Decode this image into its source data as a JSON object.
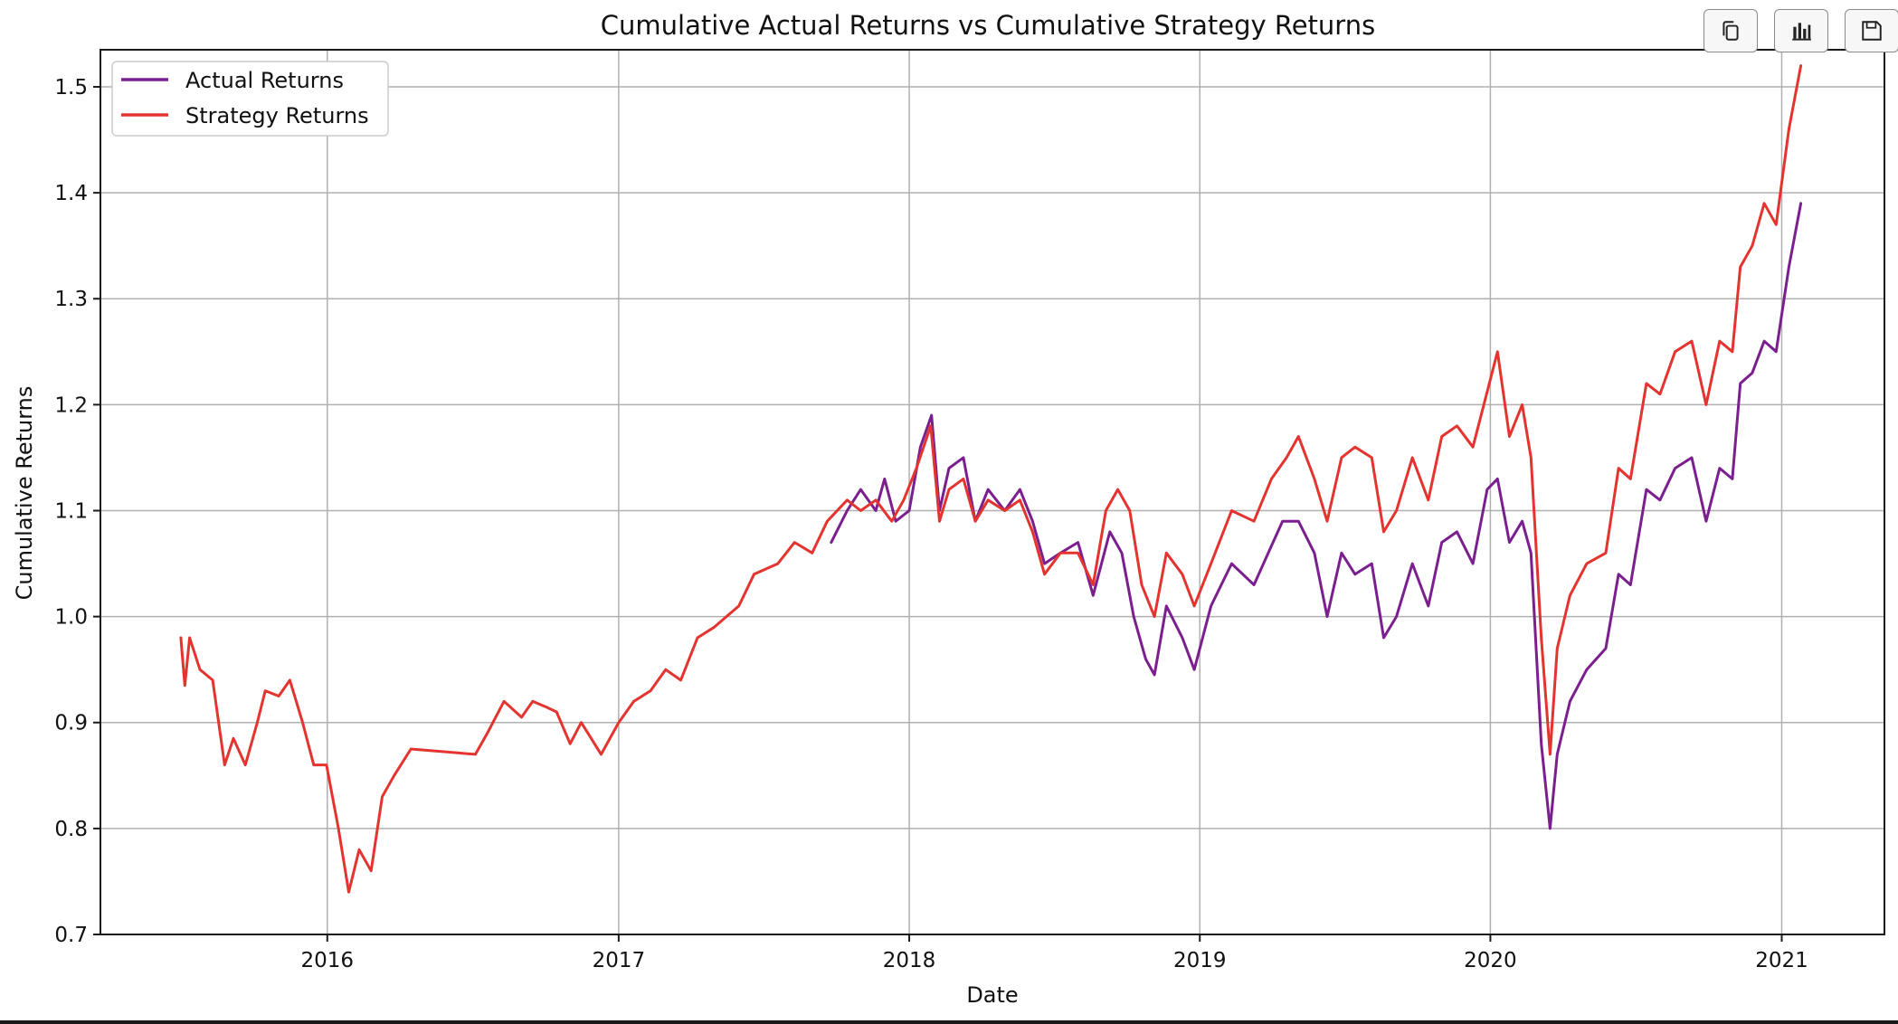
{
  "toolbar": {
    "buttons": [
      {
        "icon": "copy-icon"
      },
      {
        "icon": "bar-chart-icon"
      },
      {
        "icon": "save-icon"
      }
    ]
  },
  "chart_data": {
    "type": "line",
    "title": "Cumulative Actual Returns vs Cumulative Strategy Returns",
    "xlabel": "Date",
    "ylabel": "Cumulative Returns",
    "xlim": [
      "2015-03-22",
      "2021-05-10"
    ],
    "ylim": [
      0.7,
      1.535
    ],
    "xticks": [
      "2016",
      "2017",
      "2018",
      "2019",
      "2020",
      "2021"
    ],
    "yticks": [
      "0.7",
      "0.8",
      "0.9",
      "1.0",
      "1.1",
      "1.2",
      "1.3",
      "1.4",
      "1.5"
    ],
    "grid": true,
    "legend": {
      "position": "top-left",
      "entries": [
        "Actual Returns",
        "Strategy Returns"
      ]
    },
    "series": [
      {
        "name": "Actual Returns",
        "color": "#7b1f8f",
        "points": [
          [
            "2017-09-25",
            1.07
          ],
          [
            "2017-10-15",
            1.1
          ],
          [
            "2017-11-01",
            1.12
          ],
          [
            "2017-11-20",
            1.1
          ],
          [
            "2017-12-01",
            1.13
          ],
          [
            "2017-12-15",
            1.09
          ],
          [
            "2018-01-01",
            1.1
          ],
          [
            "2018-01-15",
            1.16
          ],
          [
            "2018-01-29",
            1.19
          ],
          [
            "2018-02-08",
            1.1
          ],
          [
            "2018-02-20",
            1.14
          ],
          [
            "2018-03-10",
            1.15
          ],
          [
            "2018-03-25",
            1.09
          ],
          [
            "2018-04-10",
            1.12
          ],
          [
            "2018-05-01",
            1.1
          ],
          [
            "2018-05-20",
            1.12
          ],
          [
            "2018-06-05",
            1.09
          ],
          [
            "2018-06-20",
            1.05
          ],
          [
            "2018-07-10",
            1.06
          ],
          [
            "2018-08-01",
            1.07
          ],
          [
            "2018-08-20",
            1.02
          ],
          [
            "2018-09-10",
            1.08
          ],
          [
            "2018-09-25",
            1.06
          ],
          [
            "2018-10-10",
            1.0
          ],
          [
            "2018-10-25",
            0.96
          ],
          [
            "2018-11-05",
            0.945
          ],
          [
            "2018-11-20",
            1.01
          ],
          [
            "2018-12-10",
            0.98
          ],
          [
            "2018-12-25",
            0.95
          ],
          [
            "2019-01-15",
            1.01
          ],
          [
            "2019-02-10",
            1.05
          ],
          [
            "2019-03-10",
            1.03
          ],
          [
            "2019-03-28",
            1.06
          ],
          [
            "2019-04-15",
            1.09
          ],
          [
            "2019-05-05",
            1.09
          ],
          [
            "2019-05-25",
            1.06
          ],
          [
            "2019-06-10",
            1.0
          ],
          [
            "2019-06-28",
            1.06
          ],
          [
            "2019-07-15",
            1.04
          ],
          [
            "2019-08-05",
            1.05
          ],
          [
            "2019-08-20",
            0.98
          ],
          [
            "2019-09-05",
            1.0
          ],
          [
            "2019-09-25",
            1.05
          ],
          [
            "2019-10-15",
            1.01
          ],
          [
            "2019-11-01",
            1.07
          ],
          [
            "2019-11-20",
            1.08
          ],
          [
            "2019-12-10",
            1.05
          ],
          [
            "2019-12-28",
            1.12
          ],
          [
            "2020-01-10",
            1.13
          ],
          [
            "2020-01-25",
            1.07
          ],
          [
            "2020-02-10",
            1.09
          ],
          [
            "2020-02-21",
            1.06
          ],
          [
            "2020-03-05",
            0.88
          ],
          [
            "2020-03-16",
            0.8
          ],
          [
            "2020-03-25",
            0.87
          ],
          [
            "2020-04-10",
            0.92
          ],
          [
            "2020-05-01",
            0.95
          ],
          [
            "2020-05-25",
            0.97
          ],
          [
            "2020-06-10",
            1.04
          ],
          [
            "2020-06-25",
            1.03
          ],
          [
            "2020-07-15",
            1.12
          ],
          [
            "2020-08-01",
            1.11
          ],
          [
            "2020-08-20",
            1.14
          ],
          [
            "2020-09-10",
            1.15
          ],
          [
            "2020-09-28",
            1.09
          ],
          [
            "2020-10-15",
            1.14
          ],
          [
            "2020-10-31",
            1.13
          ],
          [
            "2020-11-10",
            1.22
          ],
          [
            "2020-11-25",
            1.23
          ],
          [
            "2020-12-10",
            1.26
          ],
          [
            "2020-12-25",
            1.25
          ],
          [
            "2021-01-10",
            1.33
          ],
          [
            "2021-01-25",
            1.39
          ]
        ]
      },
      {
        "name": "Strategy Returns",
        "color": "#e3342f",
        "points": [
          [
            "2015-07-01",
            0.98
          ],
          [
            "2015-07-06",
            0.935
          ],
          [
            "2015-07-12",
            0.98
          ],
          [
            "2015-07-25",
            0.95
          ],
          [
            "2015-08-10",
            0.94
          ],
          [
            "2015-08-25",
            0.86
          ],
          [
            "2015-09-05",
            0.885
          ],
          [
            "2015-09-20",
            0.86
          ],
          [
            "2015-10-05",
            0.9
          ],
          [
            "2015-10-15",
            0.93
          ],
          [
            "2015-11-01",
            0.925
          ],
          [
            "2015-11-15",
            0.94
          ],
          [
            "2015-12-01",
            0.9
          ],
          [
            "2015-12-15",
            0.86
          ],
          [
            "2015-12-31",
            0.86
          ],
          [
            "2016-01-15",
            0.8
          ],
          [
            "2016-01-28",
            0.74
          ],
          [
            "2016-02-10",
            0.78
          ],
          [
            "2016-02-25",
            0.76
          ],
          [
            "2016-03-10",
            0.83
          ],
          [
            "2016-03-25",
            0.85
          ],
          [
            "2016-04-15",
            0.875
          ],
          [
            "2016-07-05",
            0.87
          ],
          [
            "2016-07-20",
            0.89
          ],
          [
            "2016-08-10",
            0.92
          ],
          [
            "2016-09-01",
            0.905
          ],
          [
            "2016-09-15",
            0.92
          ],
          [
            "2016-10-01",
            0.915
          ],
          [
            "2016-10-15",
            0.91
          ],
          [
            "2016-11-01",
            0.88
          ],
          [
            "2016-11-15",
            0.9
          ],
          [
            "2016-12-10",
            0.87
          ],
          [
            "2017-01-01",
            0.9
          ],
          [
            "2017-01-20",
            0.92
          ],
          [
            "2017-02-10",
            0.93
          ],
          [
            "2017-03-01",
            0.95
          ],
          [
            "2017-03-20",
            0.94
          ],
          [
            "2017-04-10",
            0.98
          ],
          [
            "2017-05-01",
            0.99
          ],
          [
            "2017-06-01",
            1.01
          ],
          [
            "2017-06-20",
            1.04
          ],
          [
            "2017-07-20",
            1.05
          ],
          [
            "2017-08-10",
            1.07
          ],
          [
            "2017-09-01",
            1.06
          ],
          [
            "2017-09-20",
            1.09
          ],
          [
            "2017-10-15",
            1.11
          ],
          [
            "2017-11-01",
            1.1
          ],
          [
            "2017-11-20",
            1.11
          ],
          [
            "2017-12-10",
            1.09
          ],
          [
            "2017-12-25",
            1.11
          ],
          [
            "2018-01-10",
            1.14
          ],
          [
            "2018-01-28",
            1.18
          ],
          [
            "2018-02-08",
            1.09
          ],
          [
            "2018-02-20",
            1.12
          ],
          [
            "2018-03-10",
            1.13
          ],
          [
            "2018-03-25",
            1.09
          ],
          [
            "2018-04-10",
            1.11
          ],
          [
            "2018-05-01",
            1.1
          ],
          [
            "2018-05-20",
            1.11
          ],
          [
            "2018-06-05",
            1.08
          ],
          [
            "2018-06-20",
            1.04
          ],
          [
            "2018-07-10",
            1.06
          ],
          [
            "2018-08-01",
            1.06
          ],
          [
            "2018-08-20",
            1.03
          ],
          [
            "2018-09-05",
            1.1
          ],
          [
            "2018-09-20",
            1.12
          ],
          [
            "2018-10-05",
            1.1
          ],
          [
            "2018-10-20",
            1.03
          ],
          [
            "2018-11-05",
            1.0
          ],
          [
            "2018-11-20",
            1.06
          ],
          [
            "2018-12-10",
            1.04
          ],
          [
            "2018-12-25",
            1.01
          ],
          [
            "2019-01-15",
            1.05
          ],
          [
            "2019-02-10",
            1.1
          ],
          [
            "2019-03-10",
            1.09
          ],
          [
            "2019-04-01",
            1.13
          ],
          [
            "2019-04-20",
            1.15
          ],
          [
            "2019-05-05",
            1.17
          ],
          [
            "2019-05-25",
            1.13
          ],
          [
            "2019-06-10",
            1.09
          ],
          [
            "2019-06-28",
            1.15
          ],
          [
            "2019-07-15",
            1.16
          ],
          [
            "2019-08-05",
            1.15
          ],
          [
            "2019-08-20",
            1.08
          ],
          [
            "2019-09-05",
            1.1
          ],
          [
            "2019-09-25",
            1.15
          ],
          [
            "2019-10-15",
            1.11
          ],
          [
            "2019-11-01",
            1.17
          ],
          [
            "2019-11-20",
            1.18
          ],
          [
            "2019-12-10",
            1.16
          ],
          [
            "2020-01-10",
            1.25
          ],
          [
            "2020-01-25",
            1.17
          ],
          [
            "2020-02-10",
            1.2
          ],
          [
            "2020-02-21",
            1.15
          ],
          [
            "2020-03-05",
            0.98
          ],
          [
            "2020-03-16",
            0.87
          ],
          [
            "2020-03-25",
            0.97
          ],
          [
            "2020-04-10",
            1.02
          ],
          [
            "2020-05-01",
            1.05
          ],
          [
            "2020-05-25",
            1.06
          ],
          [
            "2020-06-10",
            1.14
          ],
          [
            "2020-06-25",
            1.13
          ],
          [
            "2020-07-15",
            1.22
          ],
          [
            "2020-08-01",
            1.21
          ],
          [
            "2020-08-20",
            1.25
          ],
          [
            "2020-09-10",
            1.26
          ],
          [
            "2020-09-28",
            1.2
          ],
          [
            "2020-10-15",
            1.26
          ],
          [
            "2020-10-31",
            1.25
          ],
          [
            "2020-11-10",
            1.33
          ],
          [
            "2020-11-25",
            1.35
          ],
          [
            "2020-12-10",
            1.39
          ],
          [
            "2020-12-25",
            1.37
          ],
          [
            "2021-01-10",
            1.46
          ],
          [
            "2021-01-25",
            1.52
          ]
        ]
      }
    ]
  }
}
